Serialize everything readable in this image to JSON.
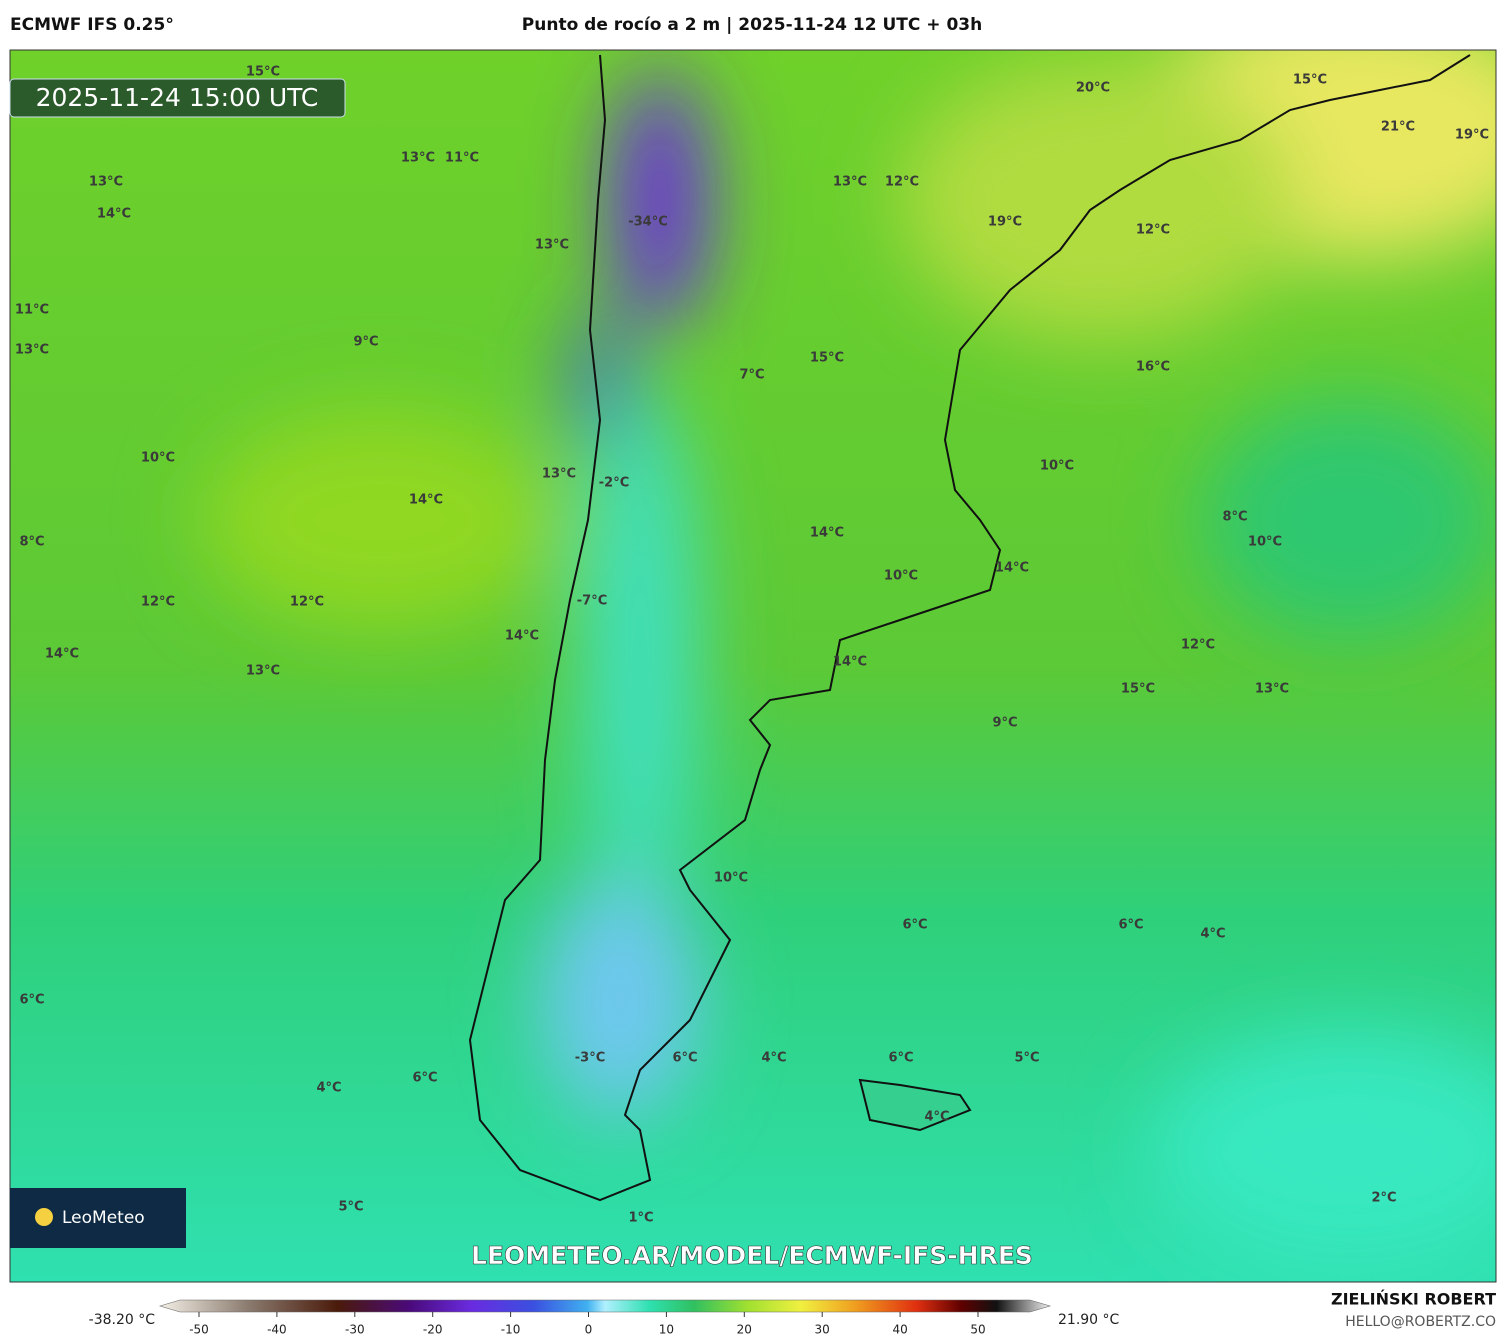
{
  "header": {
    "model": "ECMWF IFS 0.25°",
    "title": "Punto de rocío a 2 m | 2025-11-24 12 UTC + 03h"
  },
  "map": {
    "timestamp": "2025-11-24 15:00 UTC",
    "logo": "LeoMeteo",
    "watermark": "LEOMETEO.AR/MODEL/ECMWF-IFS-HRES",
    "labels": [
      "15°C",
      "13°C",
      "11°C",
      "13°C",
      "14°C",
      "13°C",
      "-34°C",
      "13°C",
      "12°C",
      "20°C",
      "15°C",
      "21°C",
      "19°C",
      "19°C",
      "12°C",
      "11°C",
      "13°C",
      "9°C",
      "15°C",
      "7°C",
      "16°C",
      "10°C",
      "14°C",
      "13°C",
      "-2°C",
      "10°C",
      "8°C",
      "14°C",
      "8°C",
      "10°C",
      "10°C",
      "14°C",
      "12°C",
      "12°C",
      "-7°C",
      "14°C",
      "14°C",
      "13°C",
      "14°C",
      "12°C",
      "15°C",
      "13°C",
      "9°C",
      "10°C",
      "6°C",
      "6°C",
      "4°C",
      "6°C",
      "-3°C",
      "6°C",
      "4°C",
      "6°C",
      "5°C",
      "6°C",
      "4°C",
      "4°C",
      "5°C",
      "2°C",
      "1°C"
    ]
  },
  "colorbar": {
    "min_label": "-38.20 °C",
    "max_label": "21.90 °C",
    "ticks": [
      -50,
      -40,
      -30,
      -20,
      -10,
      0,
      10,
      20,
      30,
      40,
      50
    ]
  },
  "footer": {
    "author": "ZIELIŃSKI ROBERT",
    "contact": "HELLO@ROBERTZ.CO"
  }
}
